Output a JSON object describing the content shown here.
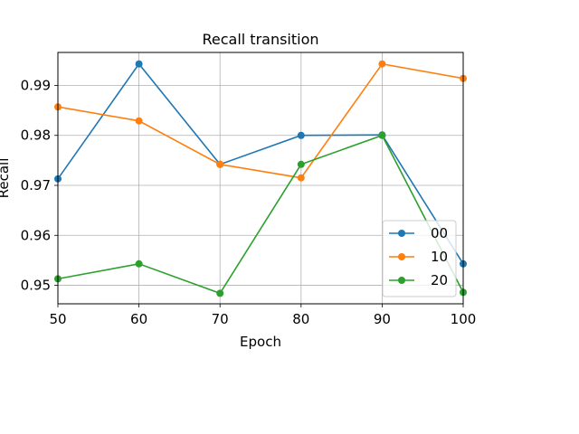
{
  "chart_data": {
    "type": "line",
    "title": "Recall transition",
    "xlabel": "Epoch",
    "ylabel": "Recall",
    "x": [
      50,
      60,
      70,
      80,
      90,
      100
    ],
    "xlim": [
      50,
      100
    ],
    "ylim": [
      0.9463,
      0.9966
    ],
    "xticks": [
      50,
      60,
      70,
      80,
      90,
      100
    ],
    "yticks": [
      0.95,
      0.96,
      0.97,
      0.98,
      0.99
    ],
    "ytick_labels": [
      "0.95",
      "0.96",
      "0.97",
      "0.98",
      "0.99"
    ],
    "grid": true,
    "legend_position": "lower-right",
    "series": [
      {
        "name": "00",
        "color": "#1f77b4",
        "values": [
          0.9713,
          0.9943,
          0.9742,
          0.98,
          0.9801,
          0.9543
        ]
      },
      {
        "name": "10",
        "color": "#ff7f0e",
        "values": [
          0.9857,
          0.9829,
          0.9742,
          0.9715,
          0.9943,
          0.9914
        ]
      },
      {
        "name": "20",
        "color": "#2ca02c",
        "values": [
          0.9513,
          0.9543,
          0.9484,
          0.9742,
          0.98,
          0.9486
        ]
      }
    ]
  }
}
